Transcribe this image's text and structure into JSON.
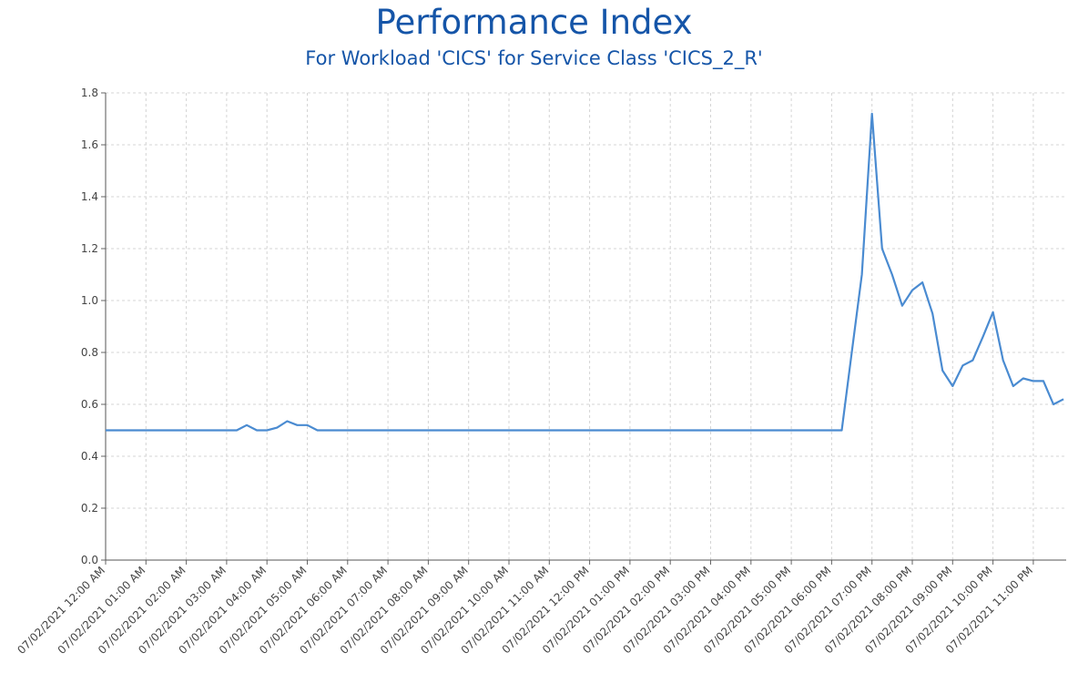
{
  "chart_data": {
    "type": "line",
    "title": "Performance Index",
    "subtitle": "For Workload 'CICS' for Service Class 'CICS_2_R'",
    "xlabel": "",
    "ylabel": "",
    "ylim": [
      0,
      1.8
    ],
    "yticks": [
      "0.0",
      "0.2",
      "0.4",
      "0.6",
      "0.8",
      "1.0",
      "1.2",
      "1.4",
      "1.6",
      "1.8"
    ],
    "xticks": [
      "07/02/2021 12:00 AM",
      "07/02/2021 01:00 AM",
      "07/02/2021 02:00 AM",
      "07/02/2021 03:00 AM",
      "07/02/2021 04:00 AM",
      "07/02/2021 05:00 AM",
      "07/02/2021 06:00 AM",
      "07/02/2021 07:00 AM",
      "07/02/2021 08:00 AM",
      "07/02/2021 09:00 AM",
      "07/02/2021 10:00 AM",
      "07/02/2021 11:00 AM",
      "07/02/2021 12:00 PM",
      "07/02/2021 01:00 PM",
      "07/02/2021 02:00 PM",
      "07/02/2021 03:00 PM",
      "07/02/2021 04:00 PM",
      "07/02/2021 05:00 PM",
      "07/02/2021 06:00 PM",
      "07/02/2021 07:00 PM",
      "07/02/2021 08:00 PM",
      "07/02/2021 09:00 PM",
      "07/02/2021 10:00 PM",
      "07/02/2021 11:00 PM"
    ],
    "grid": true,
    "line_color": "#4a8bd1",
    "title_color": "#1555a8",
    "series": [
      {
        "x": [
          "07/02/2021 12:00 AM",
          "07/02/2021 03:15 AM",
          "07/02/2021 03:30 AM",
          "07/02/2021 03:45 AM",
          "07/02/2021 04:00 AM",
          "07/02/2021 04:15 AM",
          "07/02/2021 04:30 AM",
          "07/02/2021 04:45 AM",
          "07/02/2021 05:00 AM",
          "07/02/2021 05:15 AM",
          "07/02/2021 06:15 PM",
          "07/02/2021 06:30 PM",
          "07/02/2021 06:45 PM",
          "07/02/2021 07:00 PM",
          "07/02/2021 07:15 PM",
          "07/02/2021 07:30 PM",
          "07/02/2021 07:45 PM",
          "07/02/2021 08:00 PM",
          "07/02/2021 08:15 PM",
          "07/02/2021 08:30 PM",
          "07/02/2021 08:45 PM",
          "07/02/2021 09:00 PM",
          "07/02/2021 09:15 PM",
          "07/02/2021 09:30 PM",
          "07/02/2021 09:45 PM",
          "07/02/2021 10:00 PM",
          "07/02/2021 10:15 PM",
          "07/02/2021 10:30 PM",
          "07/02/2021 10:45 PM",
          "07/02/2021 11:00 PM",
          "07/02/2021 11:15 PM",
          "07/02/2021 11:30 PM",
          "07/02/2021 11:45 PM"
        ],
        "values": [
          0.5,
          0.5,
          0.52,
          0.5,
          0.5,
          0.51,
          0.535,
          0.52,
          0.52,
          0.5,
          0.5,
          0.8,
          1.1,
          1.72,
          1.2,
          1.1,
          0.98,
          1.04,
          1.07,
          0.95,
          0.73,
          0.67,
          0.75,
          0.77,
          0.86,
          0.955,
          0.77,
          0.67,
          0.7,
          0.69,
          0.69,
          0.6,
          0.62
        ]
      }
    ]
  }
}
